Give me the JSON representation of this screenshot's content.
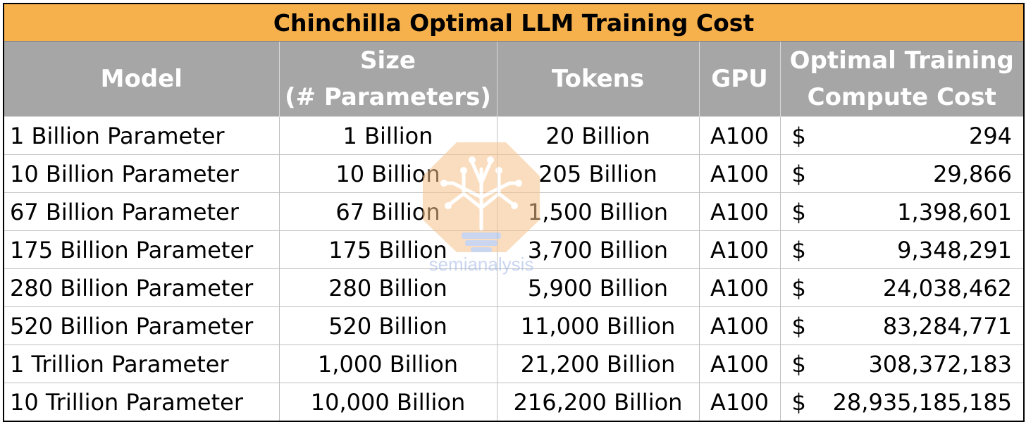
{
  "chart_data": {
    "type": "table",
    "title": "Chinchilla Optimal LLM Training Cost",
    "columns": [
      {
        "line1": "Model",
        "line2": ""
      },
      {
        "line1": "Size",
        "line2": "(# Parameters)"
      },
      {
        "line1": "Tokens",
        "line2": ""
      },
      {
        "line1": "GPU",
        "line2": ""
      },
      {
        "line1": "Optimal Training",
        "line2": "Compute Cost"
      }
    ],
    "rows": [
      {
        "model": "1 Billion Parameter",
        "size": "1 Billion",
        "tokens": "20 Billion",
        "gpu": "A100",
        "currency": "$",
        "cost": "294"
      },
      {
        "model": "10 Billion Parameter",
        "size": "10 Billion",
        "tokens": "205 Billion",
        "gpu": "A100",
        "currency": "$",
        "cost": "29,866"
      },
      {
        "model": "67 Billion Parameter",
        "size": "67 Billion",
        "tokens": "1,500 Billion",
        "gpu": "A100",
        "currency": "$",
        "cost": "1,398,601"
      },
      {
        "model": "175 Billion Parameter",
        "size": "175 Billion",
        "tokens": "3,700 Billion",
        "gpu": "A100",
        "currency": "$",
        "cost": "9,348,291"
      },
      {
        "model": "280 Billion Parameter",
        "size": "280 Billion",
        "tokens": "5,900 Billion",
        "gpu": "A100",
        "currency": "$",
        "cost": "24,038,462"
      },
      {
        "model": "520 Billion Parameter",
        "size": "520 Billion",
        "tokens": "11,000 Billion",
        "gpu": "A100",
        "currency": "$",
        "cost": "83,284,771"
      },
      {
        "model": "1 Trillion Parameter",
        "size": "1,000 Billion",
        "tokens": "21,200 Billion",
        "gpu": "A100",
        "currency": "$",
        "cost": "308,372,183"
      },
      {
        "model": "10 Trillion Parameter",
        "size": "10,000 Billion",
        "tokens": "216,200 Billion",
        "gpu": "A100",
        "currency": "$",
        "cost": "28,935,185,185"
      }
    ]
  },
  "watermark": {
    "text": "semianalysis",
    "icon": "circuit-tree-lightbulb-icon"
  },
  "colors": {
    "title_bg": "#f6b04c",
    "header_bg": "#a6a6a6",
    "header_text": "#ffffff",
    "watermark_orange": "#f7c38a",
    "watermark_blue": "#9fb6e4"
  }
}
